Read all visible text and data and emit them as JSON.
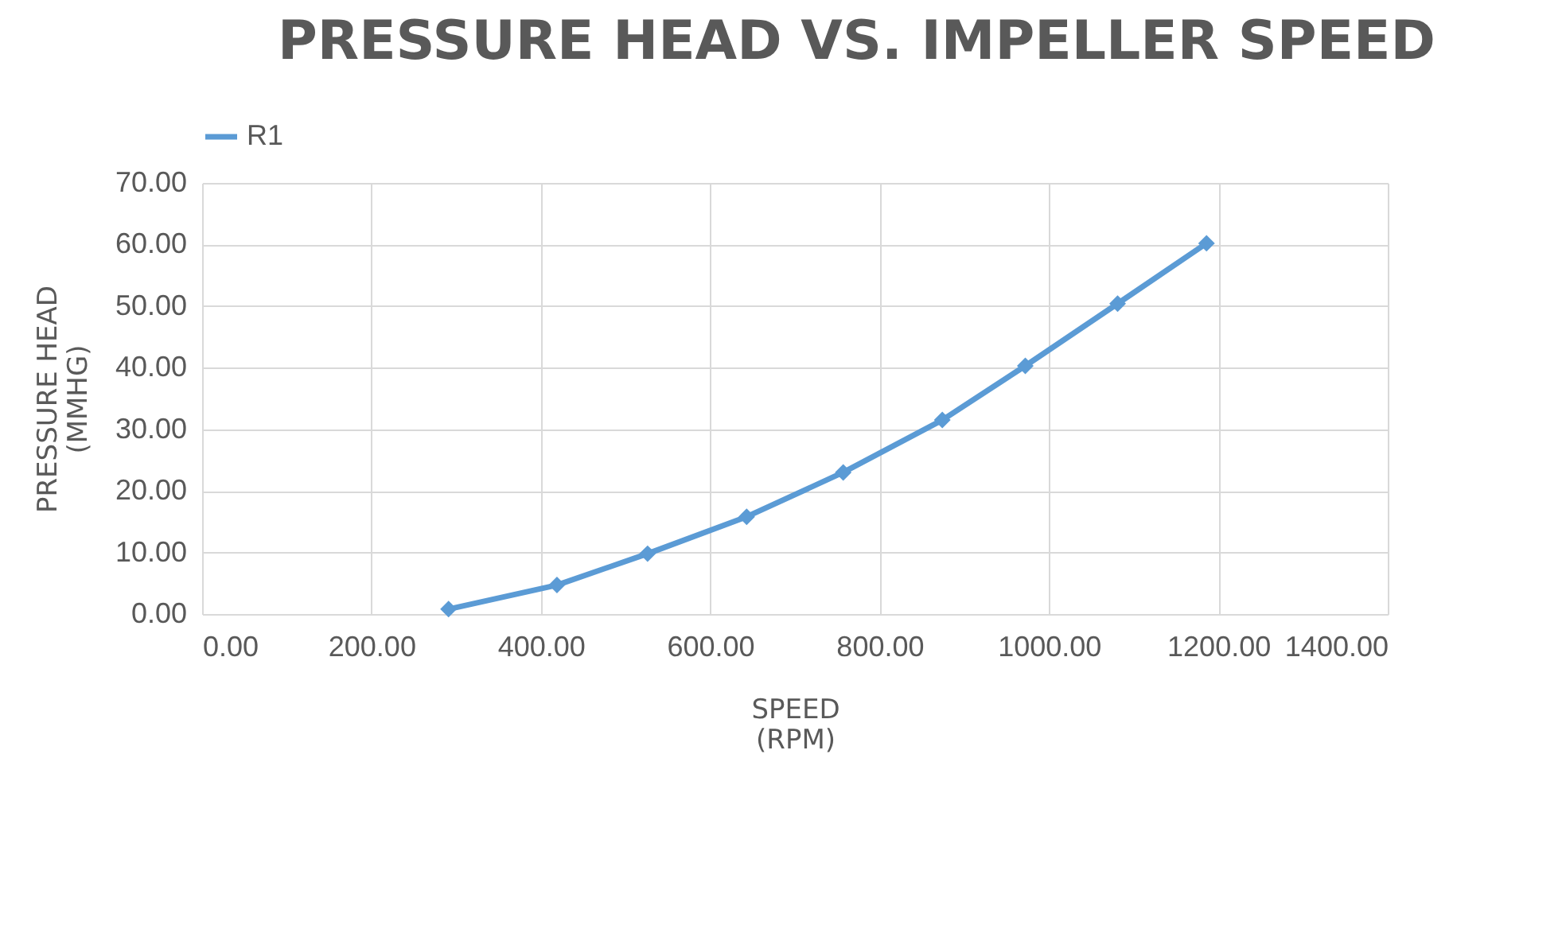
{
  "chart_data": {
    "type": "line",
    "title": "PRESSURE HEAD VS. IMPELLER SPEED",
    "xlabel": "SPEED\n(RPM)",
    "ylabel": "PRESSURE HEAD\n(MMHG)",
    "x": [
      291,
      419,
      526,
      643,
      757,
      874,
      972,
      1081,
      1186
    ],
    "series": [
      {
        "name": "R1",
        "color": "#5b9bd5",
        "values": [
          0.8,
          4.7,
          9.8,
          15.8,
          23.0,
          31.5,
          40.3,
          50.4,
          60.2
        ]
      }
    ],
    "xlim": [
      0,
      1400
    ],
    "ylim": [
      0,
      70
    ],
    "xticks": [
      {
        "value": 0,
        "label": "0.00"
      },
      {
        "value": 200,
        "label": "200.00"
      },
      {
        "value": 400,
        "label": "400.00"
      },
      {
        "value": 600,
        "label": "600.00"
      },
      {
        "value": 800,
        "label": "800.00"
      },
      {
        "value": 1000,
        "label": "1000.00"
      },
      {
        "value": 1200,
        "label": "1200.00"
      },
      {
        "value": 1400,
        "label": "1400.00"
      }
    ],
    "yticks": [
      {
        "value": 0,
        "label": "0.00"
      },
      {
        "value": 10,
        "label": "10.00"
      },
      {
        "value": 20,
        "label": "20.00"
      },
      {
        "value": 30,
        "label": "30.00"
      },
      {
        "value": 40,
        "label": "40.00"
      },
      {
        "value": 50,
        "label": "50.00"
      },
      {
        "value": 60,
        "label": "60.00"
      },
      {
        "value": 70,
        "label": "70.00"
      }
    ],
    "grid": true,
    "legend": "top",
    "marker": "diamond",
    "line_style": "solid"
  }
}
